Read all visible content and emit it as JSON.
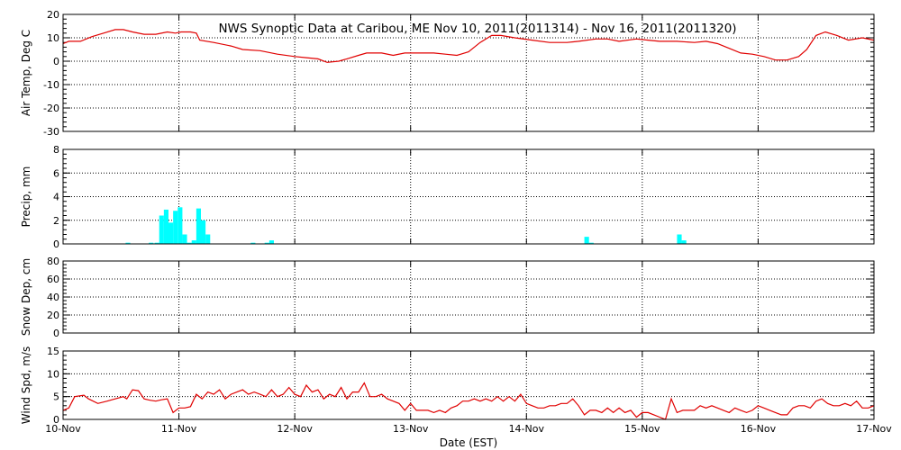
{
  "chart_data": {
    "type": "line",
    "title": "NWS Synoptic Data at Caribou, ME    Nov 10, 2011(2011314) - Nov 16, 2011(2011320)",
    "xlabel": "Date (EST)",
    "x_ticks": [
      "10-Nov",
      "11-Nov",
      "12-Nov",
      "13-Nov",
      "14-Nov",
      "15-Nov",
      "16-Nov",
      "17-Nov"
    ],
    "x_range_days": [
      0,
      7
    ],
    "line_color": "#e00000",
    "bar_color": "#00ffff",
    "grid": true,
    "panels": [
      {
        "id": "air_temp",
        "ylabel": "Air Temp, Deg C",
        "type": "line",
        "ylim": [
          -30,
          20
        ],
        "yticks": [
          20,
          10,
          0,
          -10,
          -20,
          -30
        ],
        "series": [
          {
            "points": [
              [
                0,
                7.5
              ],
              [
                0.05,
                8.5
              ],
              [
                0.15,
                8.5
              ],
              [
                0.25,
                10.5
              ],
              [
                0.35,
                12
              ],
              [
                0.45,
                13.5
              ],
              [
                0.52,
                13.5
              ],
              [
                0.6,
                12.5
              ],
              [
                0.7,
                11.5
              ],
              [
                0.8,
                11.5
              ],
              [
                0.9,
                12.5
              ],
              [
                0.97,
                12
              ],
              [
                1.02,
                12.5
              ],
              [
                1.1,
                12.5
              ],
              [
                1.15,
                12
              ],
              [
                1.18,
                9
              ],
              [
                1.3,
                8
              ],
              [
                1.45,
                6.5
              ],
              [
                1.55,
                5
              ],
              [
                1.7,
                4.5
              ],
              [
                1.85,
                3
              ],
              [
                2.0,
                2
              ],
              [
                2.1,
                1.5
              ],
              [
                2.2,
                1
              ],
              [
                2.28,
                -0.5
              ],
              [
                2.38,
                0
              ],
              [
                2.45,
                1
              ],
              [
                2.55,
                2.5
              ],
              [
                2.62,
                3.5
              ],
              [
                2.75,
                3.5
              ],
              [
                2.85,
                2.5
              ],
              [
                2.95,
                3.5
              ],
              [
                3.1,
                3.5
              ],
              [
                3.2,
                3.5
              ],
              [
                3.3,
                3
              ],
              [
                3.4,
                2.5
              ],
              [
                3.5,
                4
              ],
              [
                3.6,
                8
              ],
              [
                3.7,
                11
              ],
              [
                3.78,
                11
              ],
              [
                3.9,
                10
              ],
              [
                4.05,
                9
              ],
              [
                4.2,
                8
              ],
              [
                4.35,
                8
              ],
              [
                4.45,
                8.5
              ],
              [
                4.6,
                9.5
              ],
              [
                4.7,
                9.5
              ],
              [
                4.8,
                8.5
              ],
              [
                4.95,
                9.5
              ],
              [
                5.05,
                9
              ],
              [
                5.15,
                8.5
              ],
              [
                5.3,
                8.5
              ],
              [
                5.45,
                8
              ],
              [
                5.55,
                8.5
              ],
              [
                5.65,
                7.5
              ],
              [
                5.75,
                5.5
              ],
              [
                5.85,
                3.5
              ],
              [
                5.95,
                3
              ],
              [
                6.05,
                2
              ],
              [
                6.15,
                0.5
              ],
              [
                6.25,
                0.5
              ],
              [
                6.35,
                2
              ],
              [
                6.42,
                5
              ],
              [
                6.5,
                11
              ],
              [
                6.58,
                12.5
              ],
              [
                6.68,
                11
              ],
              [
                6.78,
                9
              ],
              [
                6.9,
                10
              ],
              [
                7.0,
                9
              ]
            ]
          }
        ]
      },
      {
        "id": "precip",
        "ylabel": "Precip, mm",
        "type": "bar",
        "ylim": [
          0,
          8
        ],
        "yticks": [
          0,
          2,
          4,
          6,
          8
        ],
        "bar_width_days": 0.04,
        "bars": [
          [
            0.54,
            0.1
          ],
          [
            0.74,
            0.1
          ],
          [
            0.79,
            0.1
          ],
          [
            0.83,
            2.4
          ],
          [
            0.87,
            2.9
          ],
          [
            0.91,
            1.8
          ],
          [
            0.95,
            2.8
          ],
          [
            0.99,
            3.1
          ],
          [
            1.03,
            0.8
          ],
          [
            1.07,
            0.1
          ],
          [
            1.11,
            0.3
          ],
          [
            1.15,
            3.0
          ],
          [
            1.19,
            2.0
          ],
          [
            1.23,
            0.8
          ],
          [
            1.62,
            0.1
          ],
          [
            1.74,
            0.1
          ],
          [
            1.78,
            0.3
          ],
          [
            4.5,
            0.6
          ],
          [
            4.54,
            0.1
          ],
          [
            5.3,
            0.8
          ],
          [
            5.34,
            0.3
          ]
        ]
      },
      {
        "id": "snow_depth",
        "ylabel": "Snow Dep, cm",
        "type": "line",
        "ylim": [
          0,
          80
        ],
        "yticks": [
          0,
          20,
          40,
          60,
          80
        ],
        "series": []
      },
      {
        "id": "wind_speed",
        "ylabel": "Wind Spd, m/s",
        "type": "line",
        "ylim": [
          0,
          15
        ],
        "yticks": [
          0,
          5,
          10,
          15
        ],
        "series": [
          {
            "points": [
              [
                0,
                2
              ],
              [
                0.05,
                2.5
              ],
              [
                0.1,
                5
              ],
              [
                0.18,
                5.3
              ],
              [
                0.22,
                4.5
              ],
              [
                0.3,
                3.5
              ],
              [
                0.38,
                4
              ],
              [
                0.45,
                4.5
              ],
              [
                0.52,
                5
              ],
              [
                0.55,
                4.5
              ],
              [
                0.6,
                6.5
              ],
              [
                0.65,
                6.3
              ],
              [
                0.7,
                4.5
              ],
              [
                0.75,
                4.2
              ],
              [
                0.8,
                4
              ],
              [
                0.85,
                4.3
              ],
              [
                0.9,
                4.5
              ],
              [
                0.95,
                1.5
              ],
              [
                1.0,
                2.5
              ],
              [
                1.05,
                2.5
              ],
              [
                1.1,
                2.8
              ],
              [
                1.15,
                5.5
              ],
              [
                1.2,
                4.5
              ],
              [
                1.25,
                6
              ],
              [
                1.3,
                5.5
              ],
              [
                1.35,
                6.5
              ],
              [
                1.4,
                4.5
              ],
              [
                1.45,
                5.5
              ],
              [
                1.5,
                6
              ],
              [
                1.55,
                6.5
              ],
              [
                1.6,
                5.5
              ],
              [
                1.65,
                6
              ],
              [
                1.7,
                5.5
              ],
              [
                1.75,
                5
              ],
              [
                1.8,
                6.5
              ],
              [
                1.85,
                5
              ],
              [
                1.9,
                5.5
              ],
              [
                1.95,
                7
              ],
              [
                2.0,
                5.5
              ],
              [
                2.05,
                5
              ],
              [
                2.1,
                7.5
              ],
              [
                2.15,
                6
              ],
              [
                2.2,
                6.5
              ],
              [
                2.25,
                4.5
              ],
              [
                2.3,
                5.5
              ],
              [
                2.35,
                5
              ],
              [
                2.4,
                7
              ],
              [
                2.45,
                4.5
              ],
              [
                2.5,
                6
              ],
              [
                2.55,
                6
              ],
              [
                2.6,
                8
              ],
              [
                2.65,
                5
              ],
              [
                2.7,
                5
              ],
              [
                2.75,
                5.5
              ],
              [
                2.8,
                4.5
              ],
              [
                2.85,
                4
              ],
              [
                2.9,
                3.5
              ],
              [
                2.95,
                2
              ],
              [
                3.0,
                3.5
              ],
              [
                3.05,
                2
              ],
              [
                3.1,
                2
              ],
              [
                3.15,
                2
              ],
              [
                3.2,
                1.5
              ],
              [
                3.25,
                2
              ],
              [
                3.3,
                1.5
              ],
              [
                3.35,
                2.5
              ],
              [
                3.4,
                3
              ],
              [
                3.45,
                4
              ],
              [
                3.5,
                4
              ],
              [
                3.55,
                4.5
              ],
              [
                3.6,
                4
              ],
              [
                3.65,
                4.5
              ],
              [
                3.7,
                4
              ],
              [
                3.75,
                5
              ],
              [
                3.8,
                4
              ],
              [
                3.85,
                5
              ],
              [
                3.9,
                4
              ],
              [
                3.95,
                5.5
              ],
              [
                4.0,
                3.5
              ],
              [
                4.05,
                3
              ],
              [
                4.1,
                2.5
              ],
              [
                4.15,
                2.5
              ],
              [
                4.2,
                3
              ],
              [
                4.25,
                3
              ],
              [
                4.3,
                3.5
              ],
              [
                4.35,
                3.5
              ],
              [
                4.4,
                4.5
              ],
              [
                4.45,
                3
              ],
              [
                4.5,
                1
              ],
              [
                4.55,
                2
              ],
              [
                4.6,
                2
              ],
              [
                4.65,
                1.5
              ],
              [
                4.7,
                2.5
              ],
              [
                4.75,
                1.5
              ],
              [
                4.8,
                2.5
              ],
              [
                4.85,
                1.5
              ],
              [
                4.9,
                2
              ],
              [
                4.95,
                0.5
              ],
              [
                5.0,
                1.5
              ],
              [
                5.05,
                1.5
              ],
              [
                5.1,
                1
              ],
              [
                5.15,
                0.5
              ],
              [
                5.2,
                0
              ],
              [
                5.25,
                4.5
              ],
              [
                5.3,
                1.5
              ],
              [
                5.35,
                2
              ],
              [
                5.4,
                2
              ],
              [
                5.45,
                2
              ],
              [
                5.5,
                3
              ],
              [
                5.55,
                2.5
              ],
              [
                5.6,
                3
              ],
              [
                5.65,
                2.5
              ],
              [
                5.7,
                2
              ],
              [
                5.75,
                1.5
              ],
              [
                5.8,
                2.5
              ],
              [
                5.85,
                2
              ],
              [
                5.9,
                1.5
              ],
              [
                5.95,
                2
              ],
              [
                6.0,
                3
              ],
              [
                6.05,
                2.5
              ],
              [
                6.1,
                2
              ],
              [
                6.15,
                1.5
              ],
              [
                6.2,
                1
              ],
              [
                6.25,
                1
              ],
              [
                6.3,
                2.5
              ],
              [
                6.35,
                3
              ],
              [
                6.4,
                3
              ],
              [
                6.45,
                2.5
              ],
              [
                6.5,
                4
              ],
              [
                6.55,
                4.5
              ],
              [
                6.6,
                3.5
              ],
              [
                6.65,
                3
              ],
              [
                6.7,
                3
              ],
              [
                6.75,
                3.5
              ],
              [
                6.8,
                3
              ],
              [
                6.85,
                4
              ],
              [
                6.9,
                2.5
              ],
              [
                6.95,
                2.5
              ],
              [
                7.0,
                3
              ]
            ]
          }
        ]
      }
    ]
  }
}
